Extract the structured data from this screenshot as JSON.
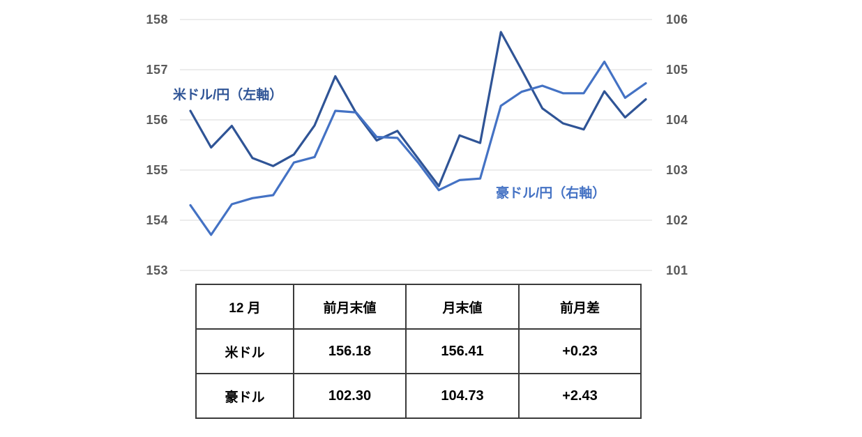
{
  "chart_data": {
    "type": "line",
    "title": "",
    "xlabel": "",
    "point_count": 23,
    "grid": true,
    "gridline_color": "#D9D9D9",
    "axis_label_color": "#595959",
    "left_axis": {
      "ticks": [
        "158",
        "157",
        "156",
        "155",
        "154",
        "153"
      ],
      "min": 153,
      "max": 158
    },
    "right_axis": {
      "ticks": [
        "106",
        "105",
        "104",
        "103",
        "102",
        "101"
      ],
      "min": 101,
      "max": 106
    },
    "series": [
      {
        "name": "米ドル/円（左軸）",
        "axis": "left",
        "color": "#2F5496",
        "values": [
          156.18,
          155.45,
          155.88,
          155.24,
          155.08,
          155.31,
          155.89,
          156.87,
          156.14,
          155.59,
          155.78,
          155.23,
          154.68,
          155.69,
          155.54,
          157.75,
          157.0,
          156.23,
          155.93,
          155.81,
          156.57,
          156.05,
          156.41
        ]
      },
      {
        "name": "豪ドル/円（右軸）",
        "axis": "right",
        "color": "#4472C4",
        "values": [
          102.3,
          101.71,
          102.32,
          102.44,
          102.5,
          103.15,
          103.26,
          104.18,
          104.15,
          103.66,
          103.64,
          103.15,
          102.6,
          102.8,
          102.83,
          104.28,
          104.56,
          104.68,
          104.53,
          104.53,
          105.16,
          104.44,
          104.73
        ]
      }
    ]
  },
  "labels": {
    "usd_series": "米ドル/円（左軸）",
    "aud_series": "豪ドル/円（右軸）"
  },
  "table": {
    "headers": [
      "12 月",
      "前月末値",
      "月末値",
      "前月差"
    ],
    "rows": [
      {
        "label": "米ドル",
        "prev": "156.18",
        "end": "156.41",
        "diff": "+0.23"
      },
      {
        "label": "豪ドル",
        "prev": "102.30",
        "end": "104.73",
        "diff": "+2.43"
      }
    ]
  }
}
